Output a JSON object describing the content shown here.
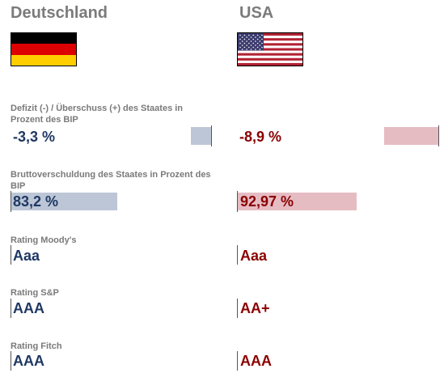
{
  "countries": {
    "de": {
      "name": "Deutschland",
      "flag_icon": "germany-flag-icon",
      "color": "#1f3864",
      "bar_color": "#bcc6d6"
    },
    "us": {
      "name": "USA",
      "flag_icon": "usa-flag-icon",
      "color": "#8b0000",
      "bar_color": "#e6bcc3"
    }
  },
  "metrics": [
    {
      "label": "Defizit (-) / Überschuss (+) des Staates in Prozent des BIP",
      "de": "-3,3 %",
      "us": "-8,9 %"
    },
    {
      "label": "Bruttoverschuldung des Staates in Prozent des BIP",
      "de": "83,2 %",
      "us": "92,97 %"
    },
    {
      "label": "Rating Moody's",
      "de": "Aaa",
      "us": "Aaa"
    },
    {
      "label": "Rating S&P",
      "de": "AAA",
      "us": "AA+"
    },
    {
      "label": "Rating Fitch",
      "de": "AAA",
      "us": "AAA"
    }
  ],
  "bars": {
    "deficit": {
      "de_percent": -3.3,
      "us_percent": -8.9
    },
    "debt": {
      "de_percent": 83.2,
      "us_percent": 92.97
    }
  }
}
